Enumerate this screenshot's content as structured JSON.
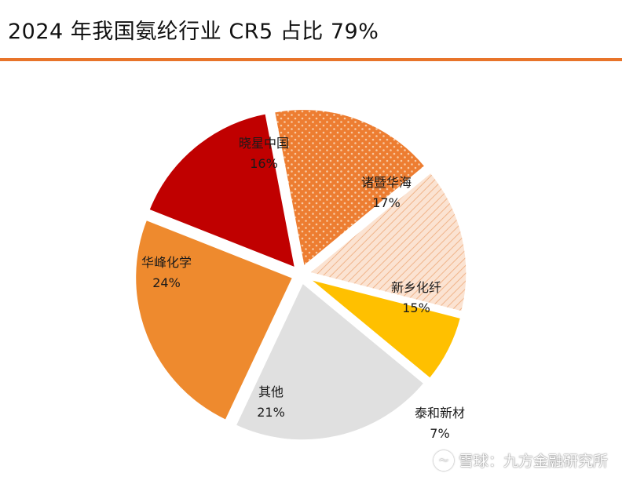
{
  "title": "2024 年我国氨纶行业 CR5 占比 79%",
  "watermark": {
    "text": "雪球：九方金融研究所",
    "icon": "snowball-logo-icon"
  },
  "chart_data": {
    "type": "pie",
    "slices": [
      {
        "name": "晓星中国",
        "label": "16%",
        "value": 16,
        "color": "#c00000",
        "pattern": "solid"
      },
      {
        "name": "诸暨华海",
        "label": "17%",
        "value": 17,
        "color": "#ed7d31",
        "pattern": "dots"
      },
      {
        "name": "新乡化纤",
        "label": "15%",
        "value": 15,
        "color": "#f8cbad",
        "pattern": "hatch"
      },
      {
        "name": "泰和新材",
        "label": "7%",
        "value": 7,
        "color": "#ffc000",
        "pattern": "solid"
      },
      {
        "name": "其他",
        "label": "21%",
        "value": 21,
        "color": "#e0e0e0",
        "pattern": "solid"
      },
      {
        "name": "华峰化学",
        "label": "24%",
        "value": 24,
        "color": "#ee8a2e",
        "pattern": "solid"
      }
    ]
  }
}
